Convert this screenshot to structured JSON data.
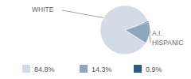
{
  "chart_data": {
    "type": "pie",
    "categories": [
      "WHITE",
      "HISPANIC",
      "A.I."
    ],
    "values": [
      84.8,
      14.3,
      0.9
    ],
    "value_labels": [
      "84.8%",
      "14.3%",
      "0.9%"
    ],
    "colors": [
      "#d3dbe6",
      "#8ea7be",
      "#2e5b82"
    ],
    "legend": "bottom"
  }
}
